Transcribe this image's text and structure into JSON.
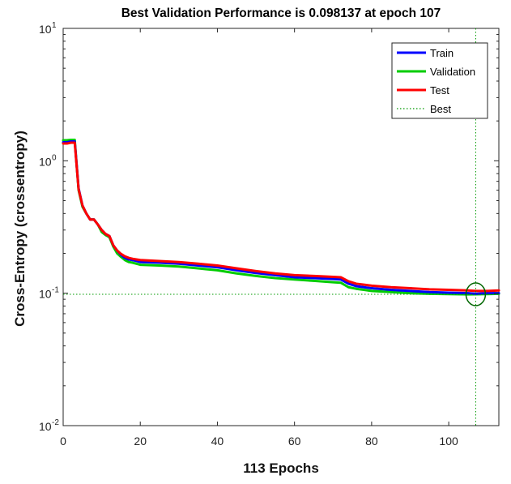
{
  "chart_data": {
    "type": "line",
    "title": "Best Validation Performance is 0.098137 at epoch 107",
    "xlabel": "113 Epochs",
    "ylabel": "Cross-Entropy  (crossentropy)",
    "xlim": [
      0,
      113
    ],
    "ylim": [
      0.01,
      10
    ],
    "yscale": "log",
    "x_ticks": [
      "0",
      "20",
      "40",
      "60",
      "80",
      "100"
    ],
    "x_tick_values": [
      0,
      20,
      40,
      60,
      80,
      100
    ],
    "y_ticks": [
      {
        "value": 10,
        "base": "10",
        "exp": "1"
      },
      {
        "value": 1,
        "base": "10",
        "exp": "0"
      },
      {
        "value": 0.1,
        "base": "10",
        "exp": "-1"
      },
      {
        "value": 0.01,
        "base": "10",
        "exp": "-2"
      }
    ],
    "grid": false,
    "legend_position": "top-right",
    "series": [
      {
        "name": "Train",
        "color": "#0000ff",
        "x": [
          0,
          1,
          2,
          3,
          4,
          5,
          6,
          7,
          8,
          9,
          10,
          11,
          12,
          13,
          14,
          15,
          16,
          17,
          18,
          19,
          20,
          25,
          30,
          35,
          40,
          45,
          50,
          55,
          60,
          65,
          70,
          72,
          74,
          76,
          78,
          80,
          85,
          90,
          95,
          100,
          105,
          107,
          110,
          113
        ],
        "y": [
          1.38,
          1.38,
          1.4,
          1.4,
          0.62,
          0.46,
          0.4,
          0.36,
          0.36,
          0.33,
          0.3,
          0.28,
          0.27,
          0.23,
          0.21,
          0.195,
          0.185,
          0.18,
          0.178,
          0.175,
          0.172,
          0.17,
          0.167,
          0.162,
          0.157,
          0.149,
          0.142,
          0.137,
          0.132,
          0.13,
          0.128,
          0.127,
          0.118,
          0.113,
          0.111,
          0.109,
          0.106,
          0.104,
          0.102,
          0.101,
          0.1,
          0.099,
          0.1,
          0.1
        ]
      },
      {
        "name": "Validation",
        "color": "#00cc00",
        "x": [
          0,
          1,
          2,
          3,
          4,
          5,
          6,
          7,
          8,
          9,
          10,
          11,
          12,
          13,
          14,
          15,
          16,
          17,
          18,
          19,
          20,
          25,
          30,
          35,
          40,
          45,
          50,
          55,
          60,
          65,
          70,
          72,
          74,
          76,
          78,
          80,
          85,
          90,
          95,
          100,
          105,
          107,
          110,
          113
        ],
        "y": [
          1.43,
          1.43,
          1.44,
          1.44,
          0.6,
          0.45,
          0.4,
          0.36,
          0.36,
          0.33,
          0.29,
          0.275,
          0.265,
          0.225,
          0.2,
          0.188,
          0.178,
          0.172,
          0.17,
          0.167,
          0.164,
          0.162,
          0.159,
          0.154,
          0.149,
          0.141,
          0.135,
          0.13,
          0.127,
          0.124,
          0.121,
          0.12,
          0.111,
          0.108,
          0.106,
          0.104,
          0.102,
          0.1,
          0.099,
          0.0985,
          0.098,
          0.098137,
          0.0985,
          0.099
        ]
      },
      {
        "name": "Test",
        "color": "#ff0000",
        "x": [
          0,
          1,
          2,
          3,
          4,
          5,
          6,
          7,
          8,
          9,
          10,
          11,
          12,
          13,
          14,
          15,
          16,
          17,
          18,
          19,
          20,
          25,
          30,
          35,
          40,
          45,
          50,
          55,
          60,
          65,
          70,
          72,
          74,
          76,
          78,
          80,
          85,
          90,
          95,
          100,
          105,
          107,
          110,
          113
        ],
        "y": [
          1.35,
          1.35,
          1.37,
          1.37,
          0.61,
          0.46,
          0.4,
          0.36,
          0.36,
          0.33,
          0.3,
          0.28,
          0.27,
          0.23,
          0.21,
          0.198,
          0.19,
          0.185,
          0.182,
          0.18,
          0.178,
          0.175,
          0.172,
          0.167,
          0.162,
          0.154,
          0.147,
          0.141,
          0.137,
          0.135,
          0.133,
          0.132,
          0.123,
          0.118,
          0.116,
          0.114,
          0.111,
          0.109,
          0.107,
          0.106,
          0.105,
          0.104,
          0.104,
          0.105
        ]
      }
    ],
    "best": {
      "name": "Best",
      "color": "#009900",
      "epoch": 107,
      "value": 0.098137
    }
  }
}
